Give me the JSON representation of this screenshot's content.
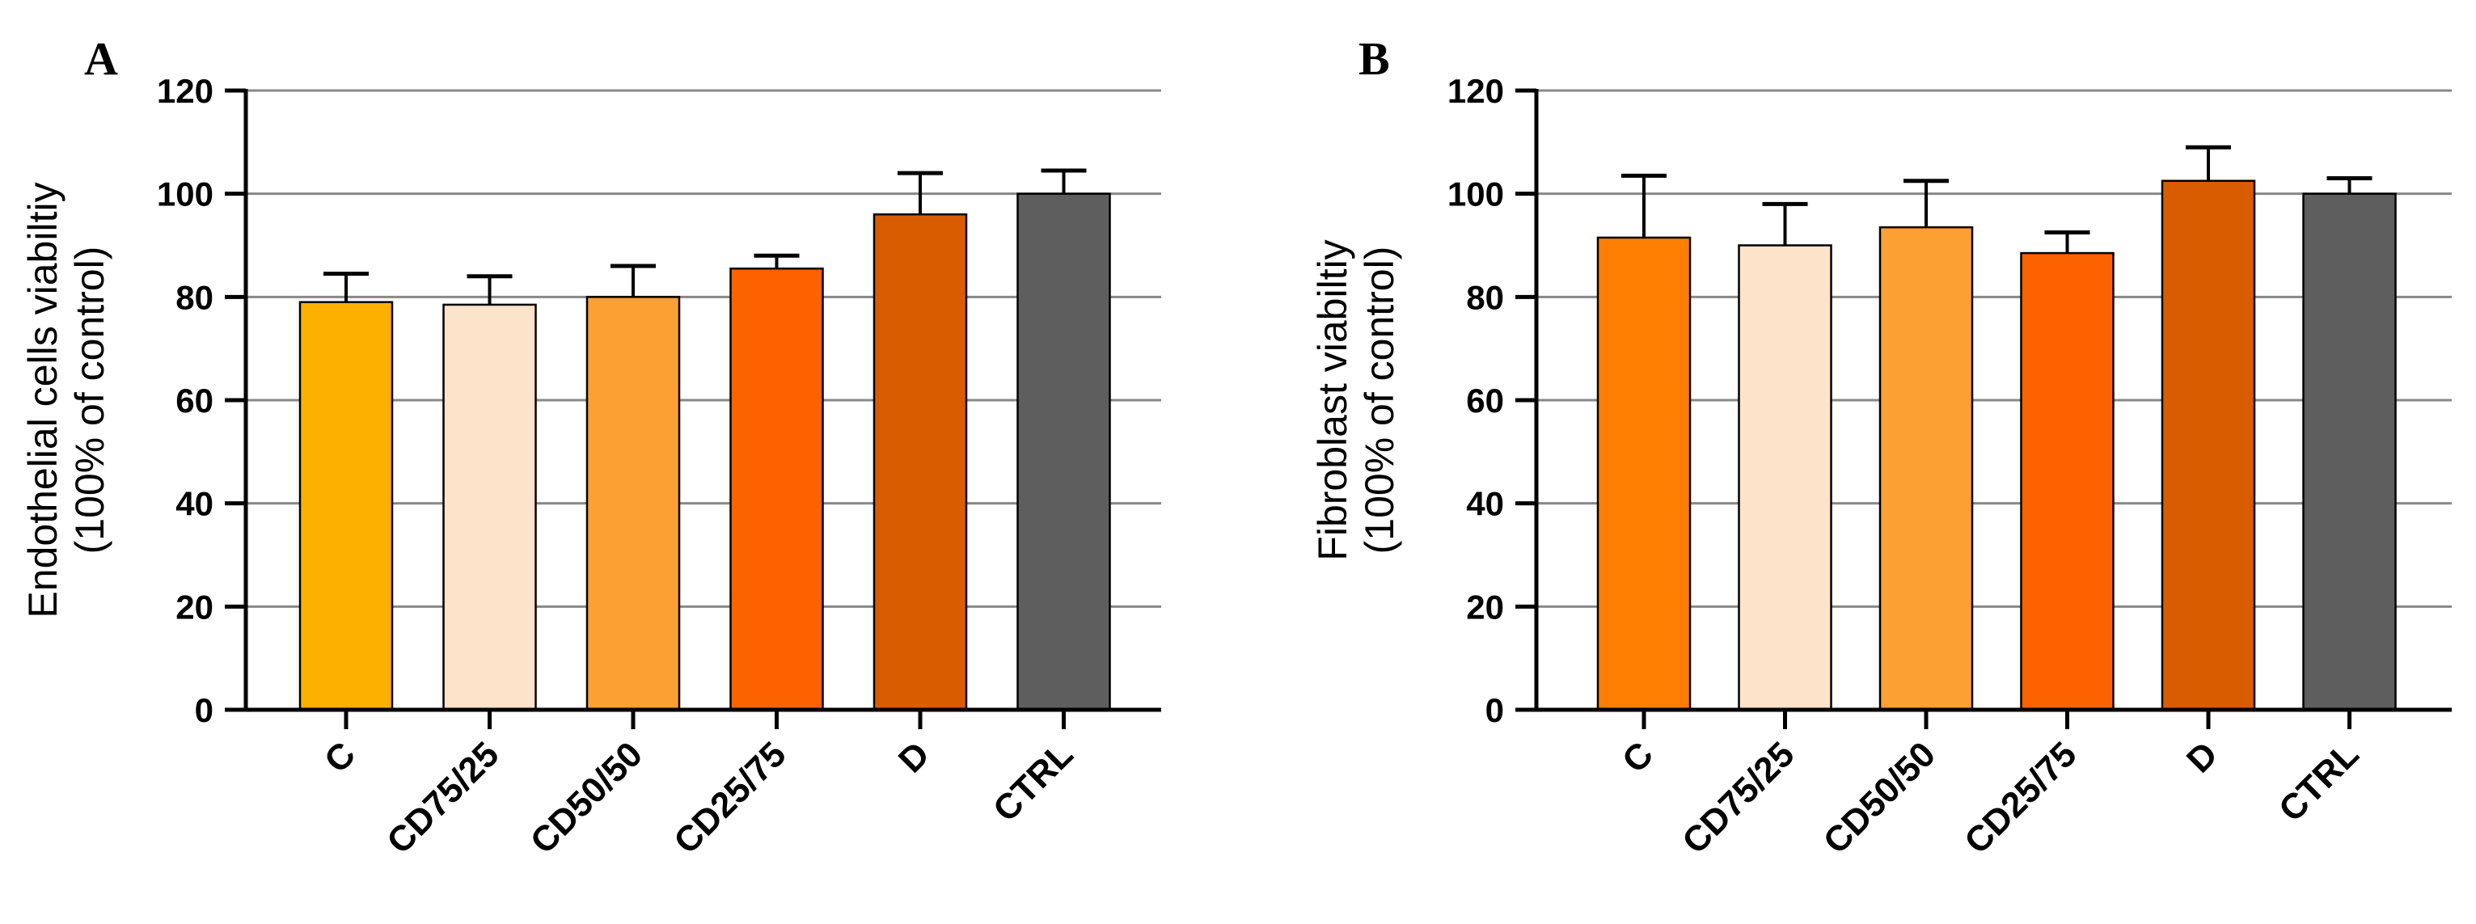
{
  "chart_data": [
    {
      "panel": "A",
      "type": "bar",
      "categories": [
        "C",
        "CD75/25",
        "CD50/50",
        "CD25/75",
        "D",
        "CTRL"
      ],
      "values": [
        79,
        78.5,
        80,
        85.5,
        96,
        100
      ],
      "errors": [
        5.5,
        5.5,
        6,
        2.5,
        8,
        4.5
      ],
      "colors": [
        "#FDB000",
        "#FDE3C9",
        "#FCA033",
        "#FD6200",
        "#DA5C00",
        "#5E5E5E"
      ],
      "ylabel_lines": [
        "Endothelial cells viabiltiy",
        "(100%  of control)"
      ],
      "xlabel": "",
      "ylim": [
        0,
        120
      ],
      "yticks": [
        0,
        20,
        40,
        60,
        80,
        100,
        120
      ],
      "grid": true
    },
    {
      "panel": "B",
      "type": "bar",
      "categories": [
        "C",
        "CD75/25",
        "CD50/50",
        "CD25/75",
        "D",
        "CTRL"
      ],
      "values": [
        91.5,
        90,
        93.5,
        88.5,
        102.5,
        100
      ],
      "errors": [
        12,
        8,
        9,
        4,
        6.5,
        3
      ],
      "colors": [
        "#FD7E00",
        "#FDE3C9",
        "#FCA033",
        "#FD6200",
        "#DA5C00",
        "#5E5E5E"
      ],
      "ylabel_lines": [
        "Fibroblast viabiltiy",
        "(100%  of control)"
      ],
      "xlabel": "",
      "ylim": [
        0,
        120
      ],
      "yticks": [
        0,
        20,
        40,
        60,
        80,
        100,
        120
      ],
      "grid": true
    }
  ]
}
